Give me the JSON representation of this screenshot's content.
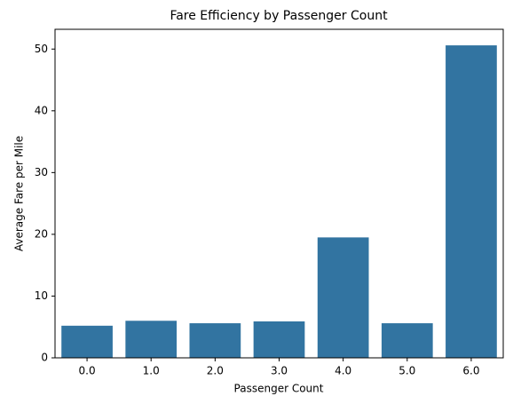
{
  "chart_data": {
    "type": "bar",
    "title": "Fare Efficiency by Passenger Count",
    "x_label": "Passenger Count",
    "y_label": "Average Fare per Mile",
    "categories": [
      "0.0",
      "1.0",
      "2.0",
      "3.0",
      "4.0",
      "5.0",
      "6.0"
    ],
    "values": [
      5.2,
      6.0,
      5.6,
      5.9,
      19.5,
      5.6,
      50.6
    ],
    "color": "#3274a1",
    "ylim": [
      0,
      53.2
    ],
    "yticks": [
      0,
      10,
      20,
      30,
      40,
      50
    ],
    "grid": false
  }
}
